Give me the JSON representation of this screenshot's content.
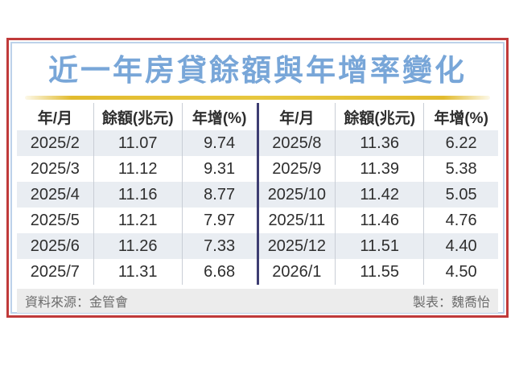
{
  "title": "近一年房貸餘額與年增率變化",
  "table": {
    "headers": [
      "年/月",
      "餘額(兆元)",
      "年增(%)"
    ],
    "left_rows": [
      [
        "2025/2",
        "11.07",
        "9.74"
      ],
      [
        "2025/3",
        "11.12",
        "9.31"
      ],
      [
        "2025/4",
        "11.16",
        "8.77"
      ],
      [
        "2025/5",
        "11.21",
        "7.97"
      ],
      [
        "2025/6",
        "11.26",
        "7.33"
      ],
      [
        "2025/7",
        "11.31",
        "6.68"
      ]
    ],
    "right_rows": [
      [
        "2025/8",
        "11.36",
        "6.22"
      ],
      [
        "2025/9",
        "11.39",
        "5.38"
      ],
      [
        "2025/10",
        "11.42",
        "5.05"
      ],
      [
        "2025/11",
        "11.46",
        "4.76"
      ],
      [
        "2025/12",
        "11.51",
        "4.40"
      ],
      [
        "2026/1",
        "11.55",
        "4.50"
      ]
    ]
  },
  "footer": {
    "source": "資料來源：金管會",
    "credit": "製表：魏喬怡"
  },
  "colors": {
    "outer_border": "#c03a3a",
    "inner_border": "#bdd2ea",
    "title_blue": "#78a6d8",
    "gold_rule": "#e5c02f",
    "center_divider": "#3d3d72",
    "row_stripe": "#e9edf2",
    "footer_bg": "#ececec"
  },
  "chart_data": {
    "type": "table",
    "title": "近一年房貸餘額與年增率變化",
    "columns": [
      "年/月",
      "餘額(兆元)",
      "年增(%)"
    ],
    "rows": [
      [
        "2025/2",
        11.07,
        9.74
      ],
      [
        "2025/3",
        11.12,
        9.31
      ],
      [
        "2025/4",
        11.16,
        8.77
      ],
      [
        "2025/5",
        11.21,
        7.97
      ],
      [
        "2025/6",
        11.26,
        7.33
      ],
      [
        "2025/7",
        11.31,
        6.68
      ],
      [
        "2025/8",
        11.36,
        6.22
      ],
      [
        "2025/9",
        11.39,
        5.38
      ],
      [
        "2025/10",
        11.42,
        5.05
      ],
      [
        "2025/11",
        11.46,
        4.76
      ],
      [
        "2025/12",
        11.51,
        4.4
      ],
      [
        "2026/1",
        11.55,
        4.5
      ]
    ],
    "source": "資料來源：金管會",
    "credit": "製表：魏喬怡"
  }
}
